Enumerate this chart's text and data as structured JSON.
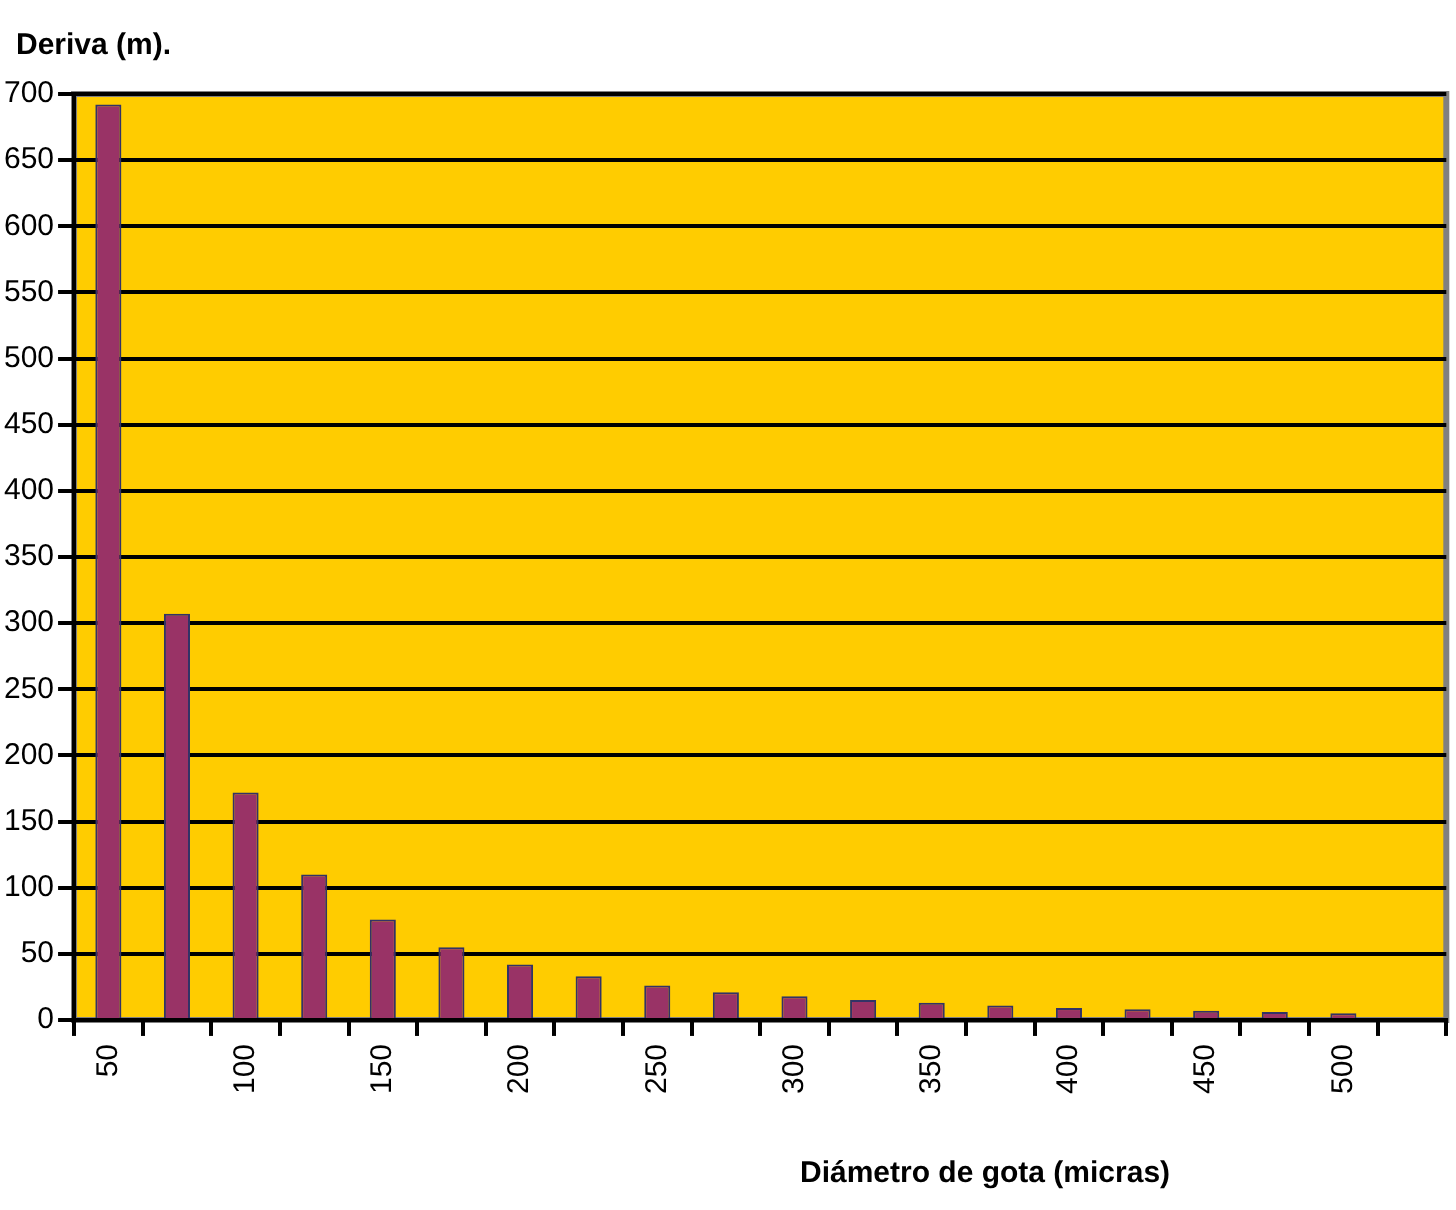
{
  "chart_data": {
    "type": "bar",
    "ylabel": "Deriva (m).",
    "xlabel": "Diámetro de gota (micras)",
    "categories": [
      "50",
      null,
      "100",
      null,
      "150",
      null,
      "200",
      null,
      "250",
      null,
      "300",
      null,
      "350",
      null,
      "400",
      null,
      "450",
      null,
      "500",
      null
    ],
    "values": [
      692,
      307,
      172,
      110,
      76,
      55,
      42,
      33,
      26,
      21,
      18,
      15,
      13,
      11,
      9,
      8,
      7,
      6,
      5,
      null
    ],
    "color": "#993366",
    "ylim": [
      0,
      700
    ],
    "yticks": [
      0,
      50,
      100,
      150,
      200,
      250,
      300,
      350,
      400,
      450,
      500,
      550,
      600,
      650,
      700
    ],
    "grid": "y",
    "legend": false
  }
}
